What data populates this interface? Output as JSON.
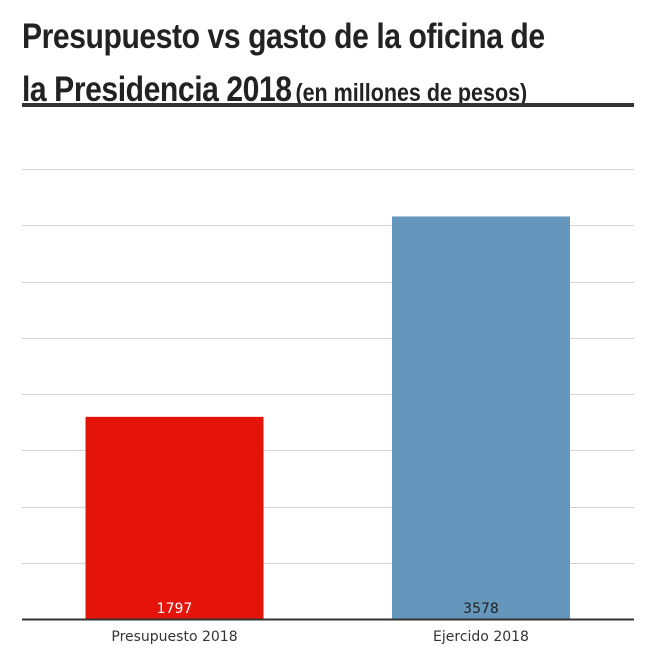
{
  "title": {
    "main": "Presupuesto vs gasto de la oficina de la Presidencia 2018",
    "sub": "(en millones de pesos)"
  },
  "chart_data": {
    "type": "bar",
    "categories": [
      "Presupuesto 2018",
      "Ejercido 2018"
    ],
    "values": [
      1797,
      3578
    ],
    "colors": [
      "#e5140b",
      "#6596bb"
    ],
    "label_colors": [
      "#ffffff",
      "#222222"
    ],
    "ylim": [
      0,
      4000
    ],
    "grid": true,
    "y_gridline_step": 500,
    "xlabel": "",
    "ylabel": ""
  }
}
